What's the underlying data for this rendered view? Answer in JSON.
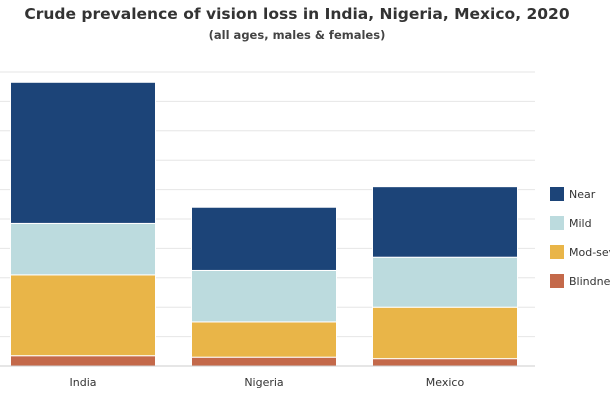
{
  "chart_data": {
    "type": "bar",
    "stacked": true,
    "title": "Crude prevalence of vision loss in India, Nigeria, Mexico, 2020",
    "subtitle": "(all ages, males & females)",
    "xlabel": "",
    "ylabel": "",
    "categories": [
      "India",
      "Nigeria",
      "Mexico"
    ],
    "ylim": [
      0,
      20
    ],
    "grid": true,
    "legend_position": "right",
    "series": [
      {
        "name": "Blindness",
        "color": "#c4694a",
        "values": [
          0.7,
          0.6,
          0.5
        ]
      },
      {
        "name": "Mod-severe",
        "color": "#e9b548",
        "values": [
          5.5,
          2.4,
          3.5
        ]
      },
      {
        "name": "Mild",
        "color": "#bcdbde",
        "values": [
          3.5,
          3.5,
          3.4
        ]
      },
      {
        "name": "Near",
        "color": "#1c4478",
        "values": [
          9.6,
          4.3,
          4.8
        ]
      }
    ],
    "legend_labels_shown": [
      "Near",
      "Mild",
      "Mod-sev",
      "Blindnes"
    ]
  }
}
